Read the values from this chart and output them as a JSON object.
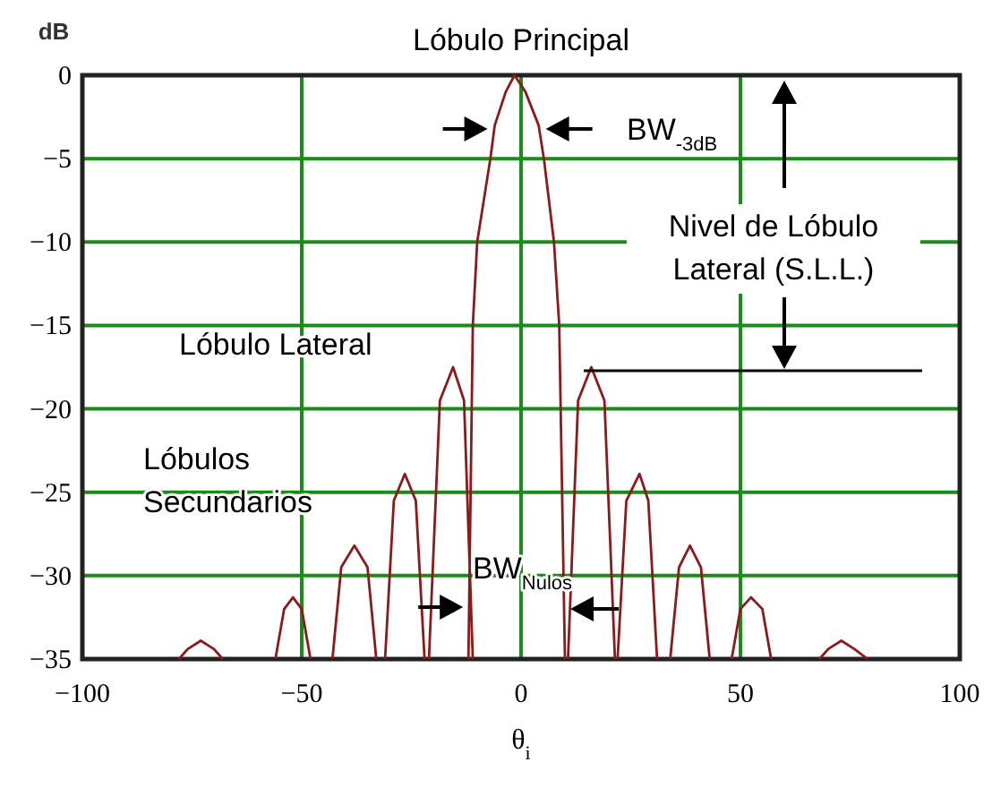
{
  "chart_data": {
    "type": "line",
    "ylabel": "dB",
    "xlabel": "θ$_{i}$",
    "xlim": [
      -100,
      100
    ],
    "xticks": [
      -100,
      -50,
      0,
      50,
      100
    ],
    "ylim": [
      -35,
      0
    ],
    "yticks": [
      0,
      -5,
      -10,
      -15,
      -20,
      -25,
      -30,
      -35
    ],
    "grid": true,
    "marker": "none",
    "line_style": "solid",
    "series": [
      {
        "color": "#8b1a1a",
        "x": [
          -78,
          -76,
          -73,
          -70,
          -68,
          null,
          -56,
          -54,
          -52,
          -50,
          -48,
          null,
          -43,
          -41,
          -38,
          -35,
          -33,
          null,
          -31,
          -29,
          -26.5,
          -24,
          -22,
          null,
          -21,
          -18.5,
          -15.5,
          -13,
          -11,
          null,
          -12,
          -11,
          -10,
          -7,
          -6,
          -3.5,
          -1.5,
          1,
          4,
          5.2,
          7.5,
          8.7,
          10,
          null,
          10.7,
          13,
          16,
          19,
          21.4,
          null,
          22,
          24,
          27,
          29,
          31,
          null,
          34,
          36,
          38.5,
          41,
          43,
          null,
          48,
          50,
          52.4,
          55,
          57,
          null,
          68,
          70,
          73,
          76,
          79
        ],
        "values": [
          -35,
          -34.4,
          -33.9,
          -34.4,
          -35,
          null,
          -35,
          -32,
          -31.3,
          -32,
          -35,
          null,
          -35,
          -29.5,
          -28.2,
          -29.5,
          -35,
          null,
          -35,
          -25.5,
          -23.9,
          -25.5,
          -35,
          null,
          -35,
          -19.5,
          -17.5,
          -19.5,
          -35,
          null,
          -35,
          -15,
          -10,
          -5,
          -3,
          -1,
          0,
          -1,
          -3,
          -5,
          -10,
          -15,
          -35,
          null,
          -35,
          -19.5,
          -17.5,
          -19.5,
          -35,
          null,
          -35,
          -25.5,
          -23.9,
          -25.5,
          -35,
          null,
          -35,
          -29.5,
          -28.2,
          -29.5,
          -35,
          null,
          -35,
          -32,
          -31.3,
          -32,
          -35,
          null,
          -35,
          -34.4,
          -33.9,
          -34.4,
          -35
        ]
      }
    ],
    "annotations": [
      "Lóbulo Principal",
      "BW$_{-3dB}$",
      "Nivel de Lóbulo Lateral (S.L.L.)",
      "Lóbulo Lateral",
      "Lóbulos Secundarios",
      "BW$_{Nulos}$"
    ]
  }
}
